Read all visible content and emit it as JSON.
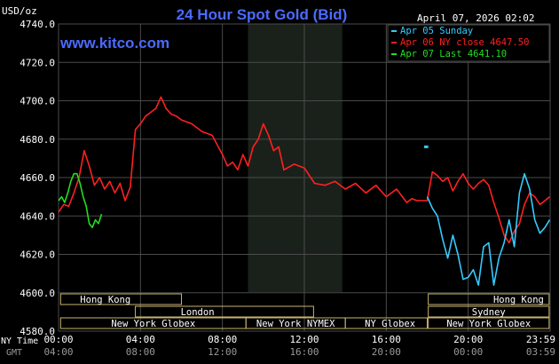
{
  "header": {
    "units": "USD/oz",
    "title": "24 Hour Spot Gold (Bid)",
    "timestamp": "April 07, 2026 02:02",
    "brand": "www.kitco.com"
  },
  "legend": [
    {
      "label": "Apr 05 Sunday",
      "color": "#33ccff"
    },
    {
      "label": "Apr 06 NY close 4647.50",
      "color": "#ff2020"
    },
    {
      "label": "Apr 07 Last 4641.10",
      "color": "#22dd22"
    }
  ],
  "colors": {
    "background": "#000000",
    "plot_background": "#000000",
    "shaded_band": "#1a211a",
    "grid": "#4a4a4a",
    "title": "#4a6bff",
    "brand": "#4a6bff",
    "session_box": "#c8b46e",
    "text": "#ffffff",
    "gmt_text": "#999999"
  },
  "sessions": [
    {
      "label": "Hong Kong",
      "row": 0
    },
    {
      "label": "London",
      "row": 1
    },
    {
      "label": "New York Globex",
      "row": 2
    },
    {
      "label": "New York NYMEX",
      "row": 2
    },
    {
      "label": "NY Globex",
      "row": 2
    },
    {
      "label": "Hong Kong",
      "row": 0
    },
    {
      "label": "Sydney",
      "row": 1
    },
    {
      "label": "New York Globex",
      "row": 2
    }
  ],
  "time_axis": {
    "ny_label": "NY Time",
    "gmt_label": "GMT",
    "ny_ticks": [
      "00:00",
      "04:00",
      "08:00",
      "12:00",
      "16:00",
      "20:00",
      "23:59"
    ],
    "gmt_ticks": [
      "04:00",
      "08:00",
      "12:00",
      "16:00",
      "20:00",
      "00:00",
      "03:59"
    ]
  },
  "chart_data": {
    "type": "line",
    "title": "24 Hour Spot Gold (Bid)",
    "ylabel": "USD/oz",
    "xlabel": "NY Time",
    "ylim": [
      4580,
      4740
    ],
    "yticks": [
      4580,
      4600,
      4620,
      4640,
      4660,
      4680,
      4700,
      4720,
      4740
    ],
    "xlim": [
      0,
      24
    ],
    "grid": true,
    "legend_position": "top-right",
    "series": [
      {
        "name": "Apr 06 NY close 4647.50",
        "color": "#ff2020",
        "x": [
          0.0,
          0.25,
          0.5,
          0.75,
          1.0,
          1.25,
          1.5,
          1.75,
          2.0,
          2.25,
          2.5,
          2.75,
          3.0,
          3.25,
          3.5,
          3.75,
          4.0,
          4.25,
          4.5,
          4.75,
          5.0,
          5.25,
          5.5,
          5.75,
          6.0,
          6.5,
          7.0,
          7.5,
          8.0,
          8.25,
          8.5,
          8.75,
          9.0,
          9.25,
          9.5,
          9.75,
          10.0,
          10.25,
          10.5,
          10.75,
          11.0,
          11.5,
          12.0,
          12.5,
          13.0,
          13.5,
          14.0,
          14.5,
          15.0,
          15.5,
          16.0,
          16.5,
          17.0,
          17.25,
          17.5,
          17.75,
          18.0,
          18.25,
          18.5,
          18.75,
          19.0,
          19.25,
          19.5,
          19.75,
          20.0,
          20.25,
          20.5,
          20.75,
          21.0,
          21.25,
          21.5,
          21.75,
          22.0,
          22.25,
          22.5,
          22.75,
          23.0,
          23.25,
          23.5,
          23.75,
          23.98
        ],
        "y": [
          4642,
          4646,
          4645,
          4652,
          4660,
          4674,
          4666,
          4656,
          4660,
          4654,
          4658,
          4652,
          4657,
          4648,
          4655,
          4685,
          4688,
          4692,
          4694,
          4696,
          4702,
          4696,
          4693,
          4692,
          4690,
          4688,
          4684,
          4682,
          4672,
          4666,
          4668,
          4664,
          4672,
          4666,
          4676,
          4680,
          4688,
          4682,
          4674,
          4676,
          4664,
          4667,
          4665,
          4657,
          4656,
          4658,
          4654,
          4657,
          4652,
          4656,
          4650,
          4654,
          4647,
          4649,
          4648,
          4648,
          4648,
          4663,
          4661,
          4658,
          4660,
          4653,
          4658,
          4662,
          4657,
          4654,
          4657,
          4659,
          4656,
          4647,
          4639,
          4630,
          4626,
          4632,
          4636,
          4646,
          4652,
          4650,
          4646,
          4648,
          4650
        ]
      },
      {
        "name": "Apr 05 Sunday",
        "color": "#33ccff",
        "x": [
          18.0,
          18.25,
          18.5,
          18.75,
          19.0,
          19.25,
          19.5,
          19.75,
          20.0,
          20.25,
          20.5,
          20.75,
          21.0,
          21.25,
          21.5,
          21.75,
          22.0,
          22.25,
          22.5,
          22.75,
          23.0,
          23.25,
          23.5,
          23.75,
          23.98
        ],
        "y": [
          4650,
          4644,
          4640,
          4628,
          4618,
          4630,
          4620,
          4607,
          4608,
          4612,
          4604,
          4624,
          4626,
          4604,
          4618,
          4626,
          4638,
          4624,
          4652,
          4662,
          4654,
          4638,
          4631,
          4634,
          4638
        ]
      },
      {
        "name": "Apr 07 Last 4641.10",
        "color": "#22dd22",
        "x": [
          0.0,
          0.15,
          0.3,
          0.45,
          0.6,
          0.75,
          0.9,
          1.05,
          1.2,
          1.35,
          1.5,
          1.65,
          1.8,
          1.95,
          2.1
        ],
        "y": [
          4648,
          4650,
          4647,
          4652,
          4658,
          4662,
          4662,
          4657,
          4650,
          4645,
          4636,
          4634,
          4638,
          4636,
          4641
        ]
      }
    ]
  }
}
